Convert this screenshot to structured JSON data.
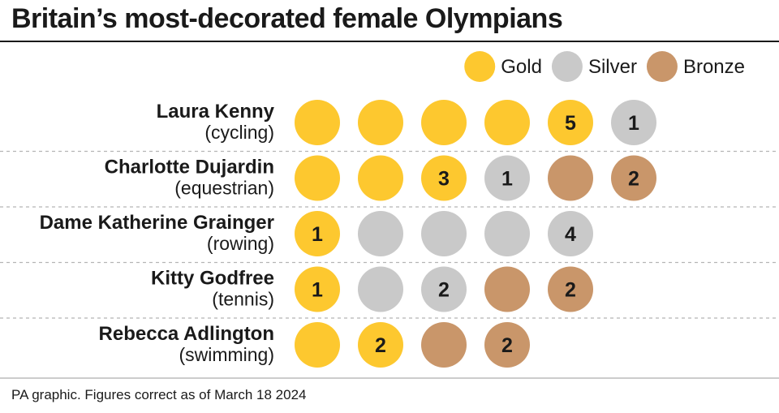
{
  "chart_data": {
    "type": "dot-matrix",
    "title": "Britain’s most-decorated female Olympians",
    "legend": [
      {
        "name": "Gold",
        "color": "#FDC82F"
      },
      {
        "name": "Silver",
        "color": "#C9C9C9"
      },
      {
        "name": "Bronze",
        "color": "#C9966A"
      }
    ],
    "legend_placement": "top-right",
    "athletes": [
      {
        "name": "Laura Kenny",
        "sport": "(cycling)",
        "gold": 5,
        "silver": 1,
        "bronze": 0
      },
      {
        "name": "Charlotte Dujardin",
        "sport": "(equestrian)",
        "gold": 3,
        "silver": 1,
        "bronze": 2
      },
      {
        "name": "Dame Katherine Grainger",
        "sport": "(rowing)",
        "gold": 1,
        "silver": 4,
        "bronze": 0
      },
      {
        "name": "Kitty Godfree",
        "sport": "(tennis)",
        "gold": 1,
        "silver": 2,
        "bronze": 2
      },
      {
        "name": "Rebecca Adlington",
        "sport": "(swimming)",
        "gold": 2,
        "silver": 0,
        "bronze": 2
      }
    ]
  },
  "source": "PA graphic. Figures correct as of March 18 2024"
}
